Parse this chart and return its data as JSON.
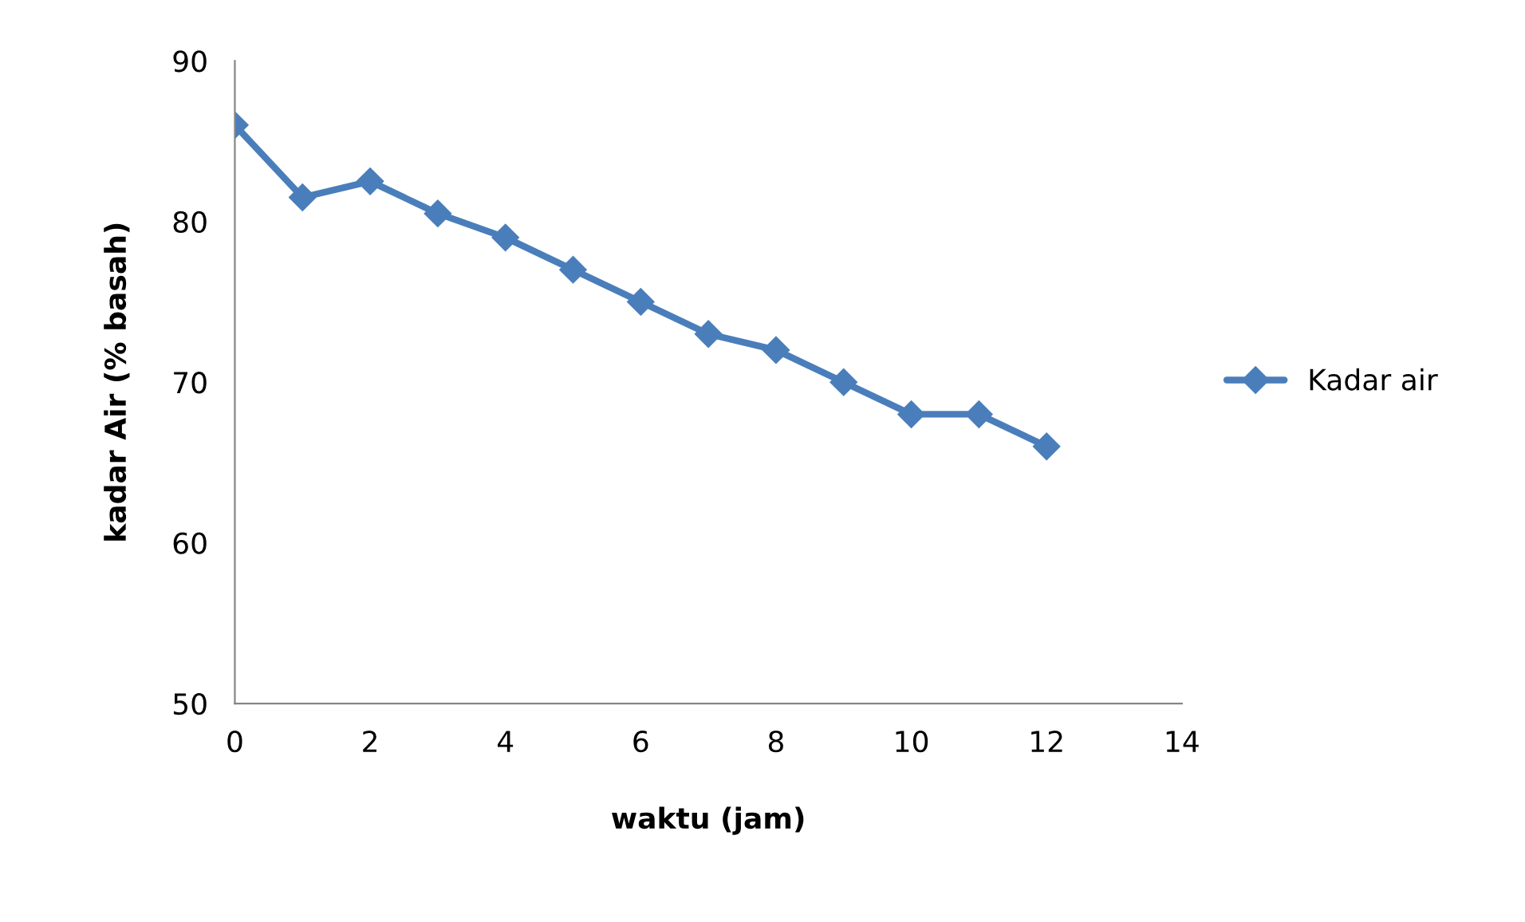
{
  "chart_data": {
    "type": "line",
    "xlabel": "waktu (jam)",
    "ylabel": "kadar Air (% basah)",
    "x": [
      0,
      1,
      2,
      3,
      4,
      5,
      6,
      7,
      8,
      9,
      10,
      11,
      12
    ],
    "series": [
      {
        "name": "Kadar air",
        "color": "#4a7ebb",
        "values": [
          86,
          81.5,
          82.5,
          80.5,
          79,
          77,
          75,
          73,
          72,
          70,
          68,
          68,
          66
        ]
      }
    ],
    "xlim": [
      0,
      14
    ],
    "xticks": [
      0,
      2,
      4,
      6,
      8,
      10,
      12,
      14
    ],
    "ylim": [
      50,
      90
    ],
    "yticks": [
      50,
      60,
      70,
      80,
      90
    ],
    "marker": "diamond",
    "line_style": "solid",
    "grid": false,
    "legend": "right"
  }
}
